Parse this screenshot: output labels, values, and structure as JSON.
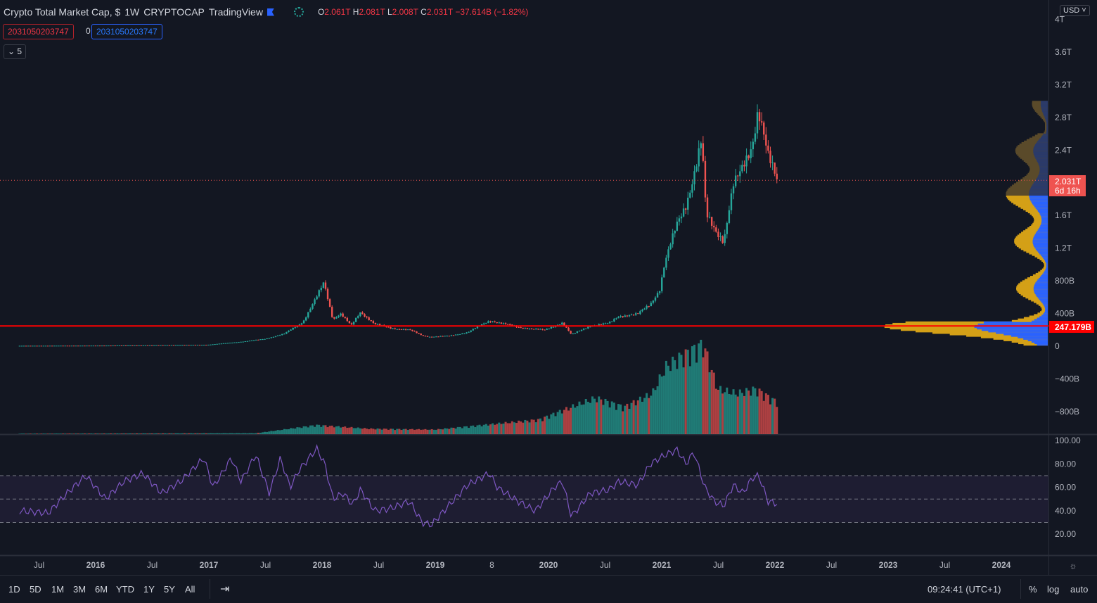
{
  "header": {
    "title": "Crypto Total Market Cap, $",
    "interval": "1W",
    "exchange": "CRYPTOCAP",
    "source": "TradingView",
    "ohlc": {
      "o_label": "O",
      "o": "2.061T",
      "h_label": "H",
      "h": "2.081T",
      "l_label": "L",
      "l": "2.008T",
      "c_label": "C",
      "c": "2.031T",
      "change": "−37.614B (−1.82%)"
    }
  },
  "indicator_legend": {
    "value_red": "2031050203747",
    "middle": "0",
    "value_blue": "2031050203747",
    "collapse_count": "5"
  },
  "currency": "USD",
  "colors": {
    "background": "#131722",
    "up": "#26a69a",
    "down": "#ef5350",
    "rsi": "#7e57c2",
    "level_line": "#ff0000",
    "profile_up": "#2962ff",
    "profile_down": "#d4a017"
  },
  "price_label": {
    "value": "2.031T",
    "countdown": "6d 16h"
  },
  "level_label": "247.179B",
  "bottom_bar": {
    "ranges": [
      "1D",
      "5D",
      "1M",
      "3M",
      "6M",
      "YTD",
      "1Y",
      "5Y",
      "All"
    ],
    "clock": "09:24:41 (UTC+1)",
    "percent": "%",
    "log": "log",
    "auto": "auto"
  },
  "chart_data": [
    {
      "type": "candlestick",
      "interval": "1W",
      "yaxis": {
        "unit": "USD",
        "range": [
          0,
          4000
        ],
        "ticks": [
          "4T",
          "3.6T",
          "3.2T",
          "2.8T",
          "2.4T",
          "1.6T",
          "1.2T",
          "800B",
          "400B",
          "0",
          "−400B",
          "−800B"
        ]
      },
      "xaxis": {
        "ticks": [
          "Jul",
          "2016",
          "Jul",
          "2017",
          "Jul",
          "2018",
          "Jul",
          "2019",
          "8",
          "2020",
          "Jul",
          "2021",
          "Jul",
          "2022",
          "Jul",
          "2023",
          "Jul",
          "2024"
        ]
      },
      "horizontal_line": 247.179,
      "last_close": 2031,
      "close_billions": [
        [
          "2015-05-01",
          5
        ],
        [
          "2016-01-01",
          7
        ],
        [
          "2016-07-01",
          11
        ],
        [
          "2017-01-01",
          18
        ],
        [
          "2017-05-01",
          60
        ],
        [
          "2017-07-01",
          90
        ],
        [
          "2017-09-01",
          150
        ],
        [
          "2017-11-01",
          300
        ],
        [
          "2017-12-15",
          600
        ],
        [
          "2018-01-07",
          780
        ],
        [
          "2018-02-05",
          330
        ],
        [
          "2018-03-01",
          400
        ],
        [
          "2018-04-05",
          250
        ],
        [
          "2018-05-05",
          420
        ],
        [
          "2018-06-20",
          270
        ],
        [
          "2018-08-10",
          220
        ],
        [
          "2018-10-10",
          200
        ],
        [
          "2018-11-20",
          130
        ],
        [
          "2018-12-15",
          115
        ],
        [
          "2019-02-15",
          125
        ],
        [
          "2019-04-15",
          170
        ],
        [
          "2019-06-25",
          310
        ],
        [
          "2019-07-15",
          300
        ],
        [
          "2019-09-25",
          230
        ],
        [
          "2019-11-20",
          210
        ],
        [
          "2019-12-20",
          195
        ],
        [
          "2020-02-15",
          290
        ],
        [
          "2020-03-15",
          140
        ],
        [
          "2020-05-15",
          250
        ],
        [
          "2020-07-15",
          280
        ],
        [
          "2020-08-15",
          370
        ],
        [
          "2020-10-15",
          390
        ],
        [
          "2020-11-25",
          520
        ],
        [
          "2020-12-25",
          700
        ],
        [
          "2021-01-10",
          1000
        ],
        [
          "2021-02-20",
          1500
        ],
        [
          "2021-03-20",
          1750
        ],
        [
          "2021-04-15",
          2100
        ],
        [
          "2021-05-10",
          2500
        ],
        [
          "2021-05-24",
          1600
        ],
        [
          "2021-06-20",
          1450
        ],
        [
          "2021-07-20",
          1300
        ],
        [
          "2021-08-20",
          1950
        ],
        [
          "2021-09-10",
          2100
        ],
        [
          "2021-10-20",
          2500
        ],
        [
          "2021-11-08",
          2900
        ],
        [
          "2021-12-10",
          2300
        ],
        [
          "2022-01-10",
          2031
        ]
      ]
    },
    {
      "type": "bar",
      "name": "Volume",
      "values_relative": [
        [
          "2015-05-01",
          0.005
        ],
        [
          "2017-06-01",
          0.01
        ],
        [
          "2017-12-15",
          0.1
        ],
        [
          "2018-06-01",
          0.06
        ],
        [
          "2019-01-01",
          0.05
        ],
        [
          "2019-06-01",
          0.1
        ],
        [
          "2019-12-01",
          0.16
        ],
        [
          "2020-03-15",
          0.3
        ],
        [
          "2020-06-01",
          0.4
        ],
        [
          "2020-09-01",
          0.3
        ],
        [
          "2020-12-01",
          0.45
        ],
        [
          "2021-01-15",
          0.75
        ],
        [
          "2021-03-01",
          0.85
        ],
        [
          "2021-05-15",
          1.0
        ],
        [
          "2021-07-01",
          0.5
        ],
        [
          "2021-09-01",
          0.45
        ],
        [
          "2021-11-01",
          0.5
        ],
        [
          "2022-01-10",
          0.35
        ]
      ]
    },
    {
      "type": "line",
      "name": "RSI",
      "yaxis": {
        "range": [
          10,
          100
        ],
        "ticks": [
          "100.00",
          "80.00",
          "60.00",
          "40.00",
          "20.00"
        ],
        "bands": [
          30,
          50,
          70
        ]
      },
      "values": [
        [
          "2015-05-01",
          40
        ],
        [
          "2015-08-01",
          38
        ],
        [
          "2015-10-01",
          55
        ],
        [
          "2015-12-01",
          70
        ],
        [
          "2016-02-01",
          50
        ],
        [
          "2016-04-01",
          65
        ],
        [
          "2016-06-01",
          72
        ],
        [
          "2016-08-01",
          55
        ],
        [
          "2016-10-01",
          65
        ],
        [
          "2016-12-15",
          85
        ],
        [
          "2017-01-15",
          60
        ],
        [
          "2017-03-15",
          85
        ],
        [
          "2017-04-15",
          65
        ],
        [
          "2017-06-01",
          88
        ],
        [
          "2017-07-15",
          55
        ],
        [
          "2017-08-20",
          85
        ],
        [
          "2017-09-20",
          60
        ],
        [
          "2017-10-20",
          75
        ],
        [
          "2017-12-15",
          93
        ],
        [
          "2018-01-10",
          80
        ],
        [
          "2018-02-05",
          50
        ],
        [
          "2018-03-10",
          55
        ],
        [
          "2018-04-10",
          45
        ],
        [
          "2018-05-05",
          58
        ],
        [
          "2018-06-20",
          40
        ],
        [
          "2018-08-10",
          42
        ],
        [
          "2018-10-10",
          48
        ],
        [
          "2018-11-20",
          30
        ],
        [
          "2018-12-20",
          28
        ],
        [
          "2019-02-15",
          45
        ],
        [
          "2019-04-15",
          62
        ],
        [
          "2019-06-25",
          72
        ],
        [
          "2019-07-20",
          60
        ],
        [
          "2019-09-25",
          48
        ],
        [
          "2019-11-20",
          40
        ],
        [
          "2020-01-20",
          60
        ],
        [
          "2020-02-15",
          65
        ],
        [
          "2020-03-15",
          35
        ],
        [
          "2020-05-15",
          55
        ],
        [
          "2020-07-15",
          58
        ],
        [
          "2020-08-15",
          65
        ],
        [
          "2020-10-15",
          62
        ],
        [
          "2020-11-25",
          80
        ],
        [
          "2020-12-25",
          85
        ],
        [
          "2021-01-15",
          88
        ],
        [
          "2021-02-20",
          92
        ],
        [
          "2021-03-20",
          80
        ],
        [
          "2021-04-15",
          90
        ],
        [
          "2021-05-20",
          60
        ],
        [
          "2021-06-20",
          48
        ],
        [
          "2021-07-20",
          44
        ],
        [
          "2021-08-20",
          62
        ],
        [
          "2021-09-20",
          55
        ],
        [
          "2021-10-20",
          68
        ],
        [
          "2021-11-10",
          70
        ],
        [
          "2021-12-10",
          48
        ],
        [
          "2022-01-10",
          46
        ]
      ]
    }
  ]
}
